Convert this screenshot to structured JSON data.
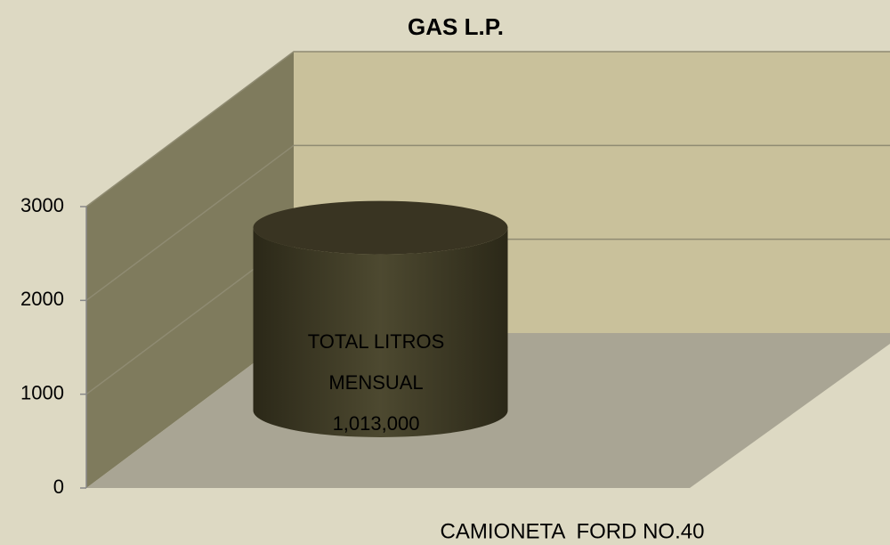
{
  "chart_data": {
    "type": "bar3d-cylinder",
    "title": "GAS L.P.",
    "categories": [
      "CAMIONETA  FORD NO.40"
    ],
    "values": [
      1950
    ],
    "color": "#3e3a26",
    "annotation": [
      "TOTAL LITROS",
      "MENSUAL",
      "1,013,000"
    ],
    "ylim": [
      0,
      3000
    ],
    "yticks": [
      0,
      1000,
      2000,
      3000
    ],
    "grid": true
  }
}
